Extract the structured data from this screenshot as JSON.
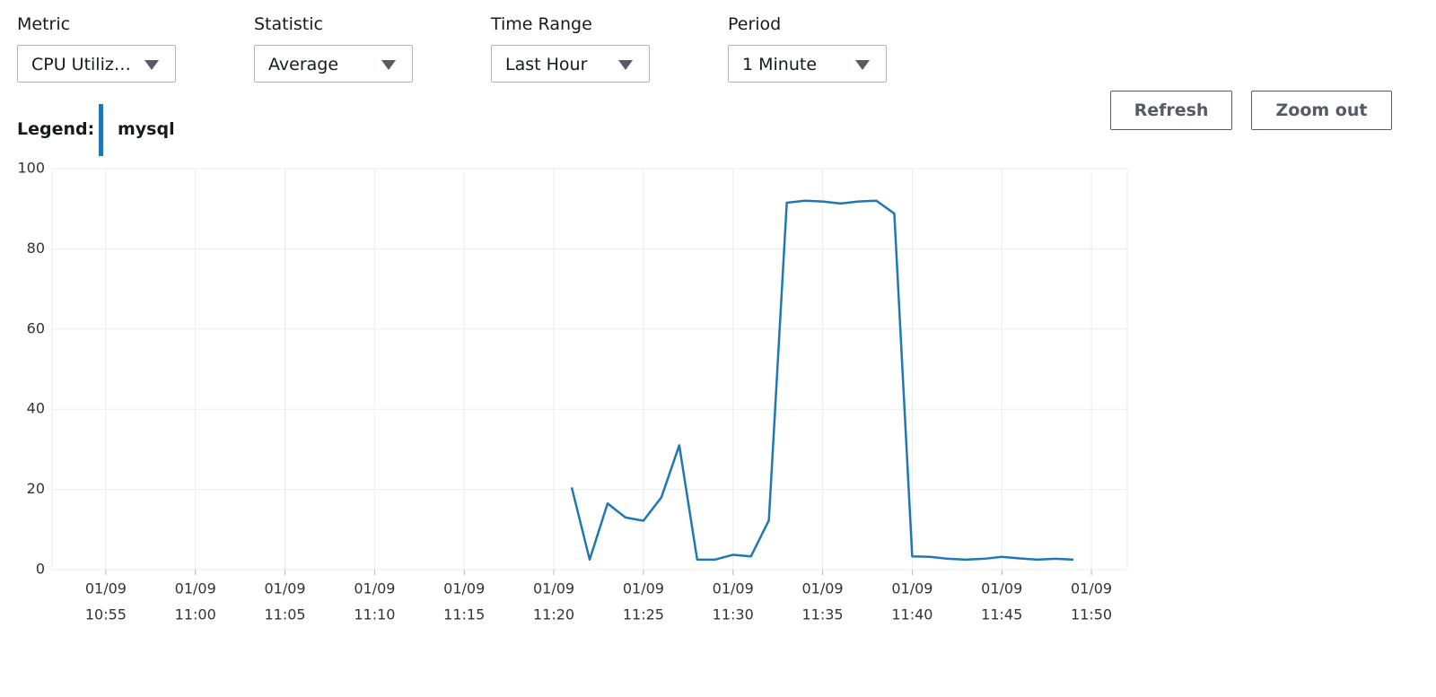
{
  "controls": [
    {
      "label": "Metric",
      "value": "CPU Utiliz…"
    },
    {
      "label": "Statistic",
      "value": "Average"
    },
    {
      "label": "Time Range",
      "value": "Last Hour"
    },
    {
      "label": "Period",
      "value": "1 Minute"
    }
  ],
  "buttons": [
    "Refresh",
    "Zoom out"
  ],
  "legend_label": "Legend:",
  "chart_data": {
    "type": "line",
    "x": [
      "11:21",
      "11:22",
      "11:23",
      "11:24",
      "11:25",
      "11:26",
      "11:27",
      "11:28",
      "11:29",
      "11:30",
      "11:31",
      "11:32",
      "11:33",
      "11:34",
      "11:35",
      "11:36",
      "11:37",
      "11:38",
      "11:39",
      "11:40",
      "11:41",
      "11:42",
      "11:43",
      "11:44",
      "11:45",
      "11:46",
      "11:47",
      "11:48",
      "11:49"
    ],
    "series": [
      {
        "name": "mysql",
        "color": "#1f77b4",
        "values": [
          20.5,
          2.5,
          16.5,
          13,
          12.2,
          18,
          31,
          2.5,
          2.5,
          3.7,
          3.3,
          12.3,
          91.5,
          92,
          91.8,
          91.3,
          91.8,
          92,
          88.8,
          3.3,
          3.2,
          2.7,
          2.5,
          2.7,
          3.2,
          2.8,
          2.5,
          2.7,
          2.5
        ]
      }
    ],
    "xlim": [
      "10:52",
      "11:52"
    ],
    "xticks": [
      {
        "value": "10:55",
        "label": "01/09"
      },
      {
        "value": "11:00",
        "label": "01/09"
      },
      {
        "value": "11:05",
        "label": "01/09"
      },
      {
        "value": "11:10",
        "label": "01/09"
      },
      {
        "value": "11:15",
        "label": "01/09"
      },
      {
        "value": "11:20",
        "label": "01/09"
      },
      {
        "value": "11:25",
        "label": "01/09"
      },
      {
        "value": "11:30",
        "label": "01/09"
      },
      {
        "value": "11:35",
        "label": "01/09"
      },
      {
        "value": "11:40",
        "label": "01/09"
      },
      {
        "value": "11:45",
        "label": "01/09"
      },
      {
        "value": "11:50",
        "label": "01/09"
      }
    ],
    "ylim": [
      0,
      100
    ],
    "yticks": [
      0,
      20,
      40,
      60,
      80,
      100
    ],
    "grid": true
  }
}
